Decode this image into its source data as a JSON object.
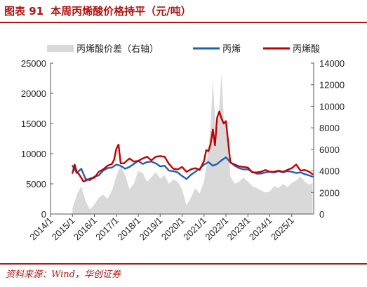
{
  "title": {
    "number": "图表 91",
    "text": "本周丙烯酸价格持平（元/吨）"
  },
  "source": "资料来源：Wind，华创证券",
  "chart_data": {
    "type": "line",
    "x_labels": [
      "2014/1",
      "2015/1",
      "2016/1",
      "2017/1",
      "2018/1",
      "2019/1",
      "2020/1",
      "2021/1",
      "2022/1",
      "2023/1",
      "2024/1",
      "2025/1"
    ],
    "x_range": [
      2014.0,
      2026.0
    ],
    "y_left": {
      "range": [
        0,
        25000
      ],
      "ticks": [
        0,
        5000,
        10000,
        15000,
        20000,
        25000
      ]
    },
    "y_right": {
      "range": [
        0,
        14000
      ],
      "ticks": [
        0,
        2000,
        4000,
        6000,
        8000,
        10000,
        12000,
        14000
      ]
    },
    "grid": false,
    "legend_position": "top",
    "series": [
      {
        "name": "丙烯酸价差（右轴）",
        "type": "area",
        "axis": "right",
        "color": "#d9d9d9",
        "x": [
          2015.0,
          2015.2,
          2015.4,
          2015.6,
          2015.8,
          2016.0,
          2016.2,
          2016.4,
          2016.6,
          2016.8,
          2017.0,
          2017.2,
          2017.4,
          2017.6,
          2017.8,
          2018.0,
          2018.2,
          2018.4,
          2018.6,
          2018.8,
          2019.0,
          2019.2,
          2019.4,
          2019.6,
          2019.8,
          2020.0,
          2020.2,
          2020.4,
          2020.6,
          2020.8,
          2021.0,
          2021.1,
          2021.2,
          2021.3,
          2021.4,
          2021.5,
          2021.6,
          2021.7,
          2021.8,
          2021.9,
          2022.0,
          2022.1,
          2022.2,
          2022.4,
          2022.6,
          2022.8,
          2023.0,
          2023.2,
          2023.4,
          2023.6,
          2023.8,
          2024.0,
          2024.2,
          2024.4,
          2024.6,
          2024.8,
          2025.0,
          2025.2,
          2025.4,
          2025.6,
          2025.8,
          2025.95
        ],
        "values": [
          500,
          1800,
          2600,
          1200,
          400,
          900,
          1500,
          1800,
          1400,
          2200,
          3500,
          4500,
          3600,
          2300,
          2800,
          4000,
          3800,
          3000,
          3400,
          3900,
          3300,
          3600,
          2800,
          3200,
          3000,
          2300,
          800,
          1500,
          2400,
          1900,
          3000,
          4500,
          6000,
          8000,
          12500,
          9000,
          7000,
          10000,
          13000,
          9000,
          8000,
          6000,
          3500,
          2800,
          3000,
          3400,
          3000,
          2600,
          2400,
          2200,
          2000,
          2100,
          2600,
          2400,
          2800,
          2500,
          2900,
          3100,
          3500,
          3000,
          2700,
          2900
        ]
      },
      {
        "name": "丙烯",
        "type": "line",
        "axis": "left",
        "color": "#1f5fb4",
        "x": [
          2015.0,
          2015.2,
          2015.4,
          2015.6,
          2015.8,
          2016.0,
          2016.2,
          2016.4,
          2016.6,
          2016.8,
          2017.0,
          2017.2,
          2017.4,
          2017.6,
          2017.8,
          2018.0,
          2018.2,
          2018.4,
          2018.6,
          2018.8,
          2019.0,
          2019.2,
          2019.4,
          2019.6,
          2019.8,
          2020.0,
          2020.2,
          2020.4,
          2020.6,
          2020.8,
          2021.0,
          2021.2,
          2021.4,
          2021.6,
          2021.8,
          2022.0,
          2022.2,
          2022.4,
          2022.6,
          2022.8,
          2023.0,
          2023.2,
          2023.4,
          2023.6,
          2023.8,
          2024.0,
          2024.2,
          2024.4,
          2024.6,
          2024.8,
          2025.0,
          2025.2,
          2025.4,
          2025.6,
          2025.8,
          2025.95
        ],
        "values": [
          8000,
          6800,
          7500,
          5800,
          5600,
          6200,
          6400,
          7200,
          7600,
          7700,
          8200,
          8000,
          7500,
          7800,
          8300,
          8800,
          8300,
          8600,
          8700,
          8400,
          7900,
          8000,
          7200,
          7100,
          6900,
          6300,
          5800,
          6500,
          7000,
          7500,
          8200,
          8600,
          8000,
          8300,
          8900,
          9400,
          8600,
          8000,
          7600,
          7400,
          7400,
          7000,
          6700,
          6700,
          6900,
          7000,
          6900,
          7100,
          6900,
          7100,
          7000,
          6800,
          6900,
          6600,
          6400,
          6200
        ]
      },
      {
        "name": "丙烯酸",
        "type": "line",
        "axis": "left",
        "color": "#c00000",
        "x": [
          2015.0,
          2015.1,
          2015.2,
          2015.3,
          2015.5,
          2015.7,
          2015.9,
          2016.0,
          2016.2,
          2016.4,
          2016.6,
          2016.8,
          2016.9,
          2017.0,
          2017.1,
          2017.2,
          2017.35,
          2017.5,
          2017.6,
          2017.8,
          2018.0,
          2018.2,
          2018.4,
          2018.6,
          2018.8,
          2019.0,
          2019.2,
          2019.4,
          2019.6,
          2019.8,
          2020.0,
          2020.2,
          2020.4,
          2020.6,
          2020.8,
          2021.0,
          2021.1,
          2021.2,
          2021.3,
          2021.4,
          2021.5,
          2021.6,
          2021.7,
          2021.8,
          2021.9,
          2022.0,
          2022.1,
          2022.2,
          2022.4,
          2022.6,
          2022.8,
          2023.0,
          2023.2,
          2023.4,
          2023.6,
          2023.8,
          2024.0,
          2024.2,
          2024.4,
          2024.6,
          2024.8,
          2025.0,
          2025.2,
          2025.4,
          2025.6,
          2025.8,
          2025.95
        ],
        "values": [
          6800,
          8200,
          6900,
          6600,
          5400,
          5700,
          6000,
          6000,
          7000,
          7400,
          8000,
          8300,
          9000,
          10800,
          11500,
          8400,
          8400,
          8900,
          9200,
          8700,
          8800,
          9200,
          9500,
          8900,
          9500,
          9600,
          9500,
          8300,
          7500,
          7400,
          7800,
          7000,
          7400,
          7600,
          7300,
          8800,
          10600,
          10400,
          11600,
          14000,
          11400,
          16000,
          17000,
          15800,
          15000,
          15400,
          12000,
          8500,
          8200,
          7900,
          7800,
          7700,
          6900,
          6900,
          7000,
          7300,
          7000,
          7000,
          7200,
          7000,
          7300,
          7600,
          8200,
          7200,
          7300,
          7000,
          6600
        ]
      }
    ]
  }
}
